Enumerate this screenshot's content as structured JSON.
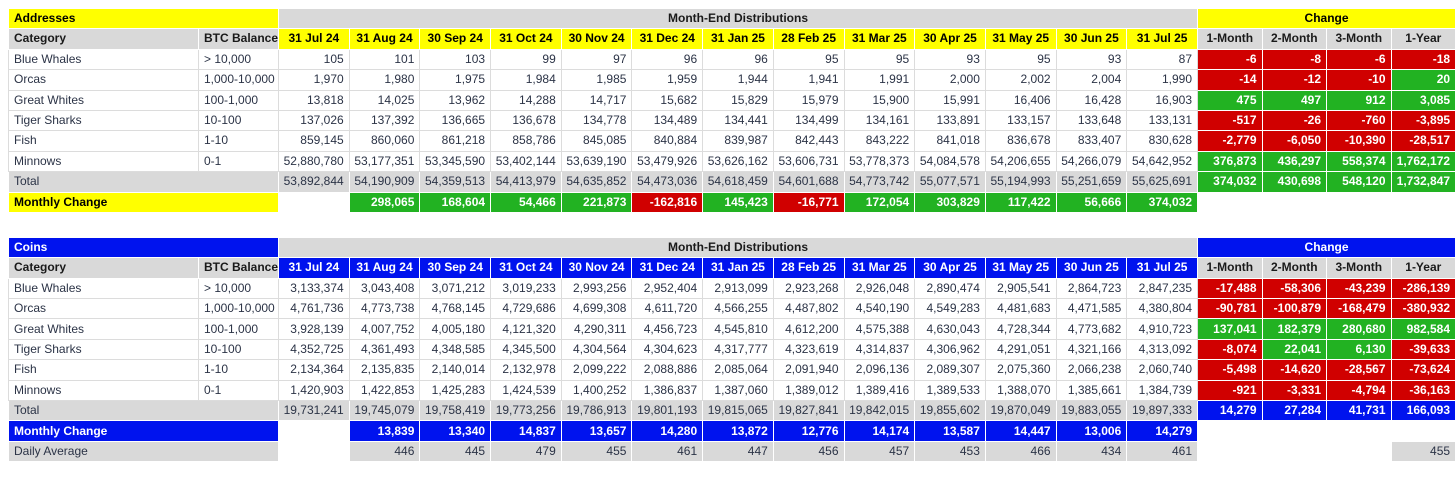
{
  "colors": {
    "yellow": "#FFFF00",
    "blue": "#0013EE",
    "green": "#22B222",
    "red": "#D00000",
    "gray": "#D9D9D9"
  },
  "columns": {
    "category": "Category",
    "balance": "BTC Balance",
    "months": [
      "31 Jul 24",
      "31 Aug 24",
      "30 Sep 24",
      "31 Oct 24",
      "30 Nov 24",
      "31 Dec 24",
      "31 Jan 25",
      "28 Feb 25",
      "31 Mar 25",
      "30 Apr 25",
      "31 May 25",
      "30 Jun 25",
      "31 Jul 25"
    ],
    "changes": [
      "1-Month",
      "2-Month",
      "3-Month",
      "1-Year"
    ]
  },
  "chart_data": [
    {
      "type": "table",
      "id": "addresses",
      "title": "Addresses",
      "banner": "Month-End Distributions",
      "change_header": "Change",
      "theme": "yellow",
      "rows": [
        {
          "category": "Blue Whales",
          "balance": "> 10,000",
          "values": [
            "105",
            "101",
            "103",
            "99",
            "97",
            "96",
            "96",
            "95",
            "95",
            "93",
            "95",
            "93",
            "87"
          ],
          "changes": [
            "-6",
            "-8",
            "-6",
            "-18"
          ]
        },
        {
          "category": "Orcas",
          "balance": "1,000-10,000",
          "values": [
            "1,970",
            "1,980",
            "1,975",
            "1,984",
            "1,985",
            "1,959",
            "1,944",
            "1,941",
            "1,991",
            "2,000",
            "2,002",
            "2,004",
            "1,990"
          ],
          "changes": [
            "-14",
            "-12",
            "-10",
            "20"
          ]
        },
        {
          "category": "Great Whites",
          "balance": "100-1,000",
          "values": [
            "13,818",
            "14,025",
            "13,962",
            "14,288",
            "14,717",
            "15,682",
            "15,829",
            "15,979",
            "15,900",
            "15,991",
            "16,406",
            "16,428",
            "16,903"
          ],
          "changes": [
            "475",
            "497",
            "912",
            "3,085"
          ]
        },
        {
          "category": "Tiger Sharks",
          "balance": "10-100",
          "values": [
            "137,026",
            "137,392",
            "136,665",
            "136,678",
            "134,778",
            "134,489",
            "134,441",
            "134,499",
            "134,161",
            "133,891",
            "133,157",
            "133,648",
            "133,131"
          ],
          "changes": [
            "-517",
            "-26",
            "-760",
            "-3,895"
          ]
        },
        {
          "category": "Fish",
          "balance": "1-10",
          "values": [
            "859,145",
            "860,060",
            "861,218",
            "858,786",
            "845,085",
            "840,884",
            "839,987",
            "842,443",
            "843,222",
            "841,018",
            "836,678",
            "833,407",
            "830,628"
          ],
          "changes": [
            "-2,779",
            "-6,050",
            "-10,390",
            "-28,517"
          ]
        },
        {
          "category": "Minnows",
          "balance": "0-1",
          "values": [
            "52,880,780",
            "53,177,351",
            "53,345,590",
            "53,402,144",
            "53,639,190",
            "53,479,926",
            "53,626,162",
            "53,606,731",
            "53,778,373",
            "54,084,578",
            "54,206,655",
            "54,266,079",
            "54,642,952"
          ],
          "changes": [
            "376,873",
            "436,297",
            "558,374",
            "1,762,172"
          ]
        }
      ],
      "total": {
        "label": "Total",
        "changes_style": "sign",
        "values": [
          "53,892,844",
          "54,190,909",
          "54,359,513",
          "54,413,979",
          "54,635,852",
          "54,473,036",
          "54,618,459",
          "54,601,688",
          "54,773,742",
          "55,077,571",
          "55,194,993",
          "55,251,659",
          "55,625,691"
        ],
        "changes": [
          "374,032",
          "430,698",
          "548,120",
          "1,732,847"
        ]
      },
      "monthly_change": {
        "label": "Monthly Change",
        "style": "sign",
        "values": [
          "298,065",
          "168,604",
          "54,466",
          "221,873",
          "-162,816",
          "145,423",
          "-16,771",
          "172,054",
          "303,829",
          "117,422",
          "56,666",
          "374,032"
        ]
      }
    },
    {
      "type": "table",
      "id": "coins",
      "title": "Coins",
      "banner": "Month-End Distributions",
      "change_header": "Change",
      "theme": "blue",
      "rows": [
        {
          "category": "Blue Whales",
          "balance": "> 10,000",
          "values": [
            "3,133,374",
            "3,043,408",
            "3,071,212",
            "3,019,233",
            "2,993,256",
            "2,952,404",
            "2,913,099",
            "2,923,268",
            "2,926,048",
            "2,890,474",
            "2,905,541",
            "2,864,723",
            "2,847,235"
          ],
          "changes": [
            "-17,488",
            "-58,306",
            "-43,239",
            "-286,139"
          ]
        },
        {
          "category": "Orcas",
          "balance": "1,000-10,000",
          "values": [
            "4,761,736",
            "4,773,738",
            "4,768,145",
            "4,729,686",
            "4,699,308",
            "4,611,720",
            "4,566,255",
            "4,487,802",
            "4,540,190",
            "4,549,283",
            "4,481,683",
            "4,471,585",
            "4,380,804"
          ],
          "changes": [
            "-90,781",
            "-100,879",
            "-168,479",
            "-380,932"
          ]
        },
        {
          "category": "Great Whites",
          "balance": "100-1,000",
          "values": [
            "3,928,139",
            "4,007,752",
            "4,005,180",
            "4,121,320",
            "4,290,311",
            "4,456,723",
            "4,545,810",
            "4,612,200",
            "4,575,388",
            "4,630,043",
            "4,728,344",
            "4,773,682",
            "4,910,723"
          ],
          "changes": [
            "137,041",
            "182,379",
            "280,680",
            "982,584"
          ]
        },
        {
          "category": "Tiger Sharks",
          "balance": "10-100",
          "values": [
            "4,352,725",
            "4,361,493",
            "4,348,585",
            "4,345,500",
            "4,304,564",
            "4,304,623",
            "4,317,777",
            "4,323,619",
            "4,314,837",
            "4,306,962",
            "4,291,051",
            "4,321,166",
            "4,313,092"
          ],
          "changes": [
            "-8,074",
            "22,041",
            "6,130",
            "-39,633"
          ]
        },
        {
          "category": "Fish",
          "balance": "1-10",
          "values": [
            "2,134,364",
            "2,135,835",
            "2,140,014",
            "2,132,978",
            "2,099,222",
            "2,088,886",
            "2,085,064",
            "2,091,940",
            "2,096,136",
            "2,089,307",
            "2,075,360",
            "2,066,238",
            "2,060,740"
          ],
          "changes": [
            "-5,498",
            "-14,620",
            "-28,567",
            "-73,624"
          ]
        },
        {
          "category": "Minnows",
          "balance": "0-1",
          "values": [
            "1,420,903",
            "1,422,853",
            "1,425,283",
            "1,424,539",
            "1,400,252",
            "1,386,837",
            "1,387,060",
            "1,389,012",
            "1,389,416",
            "1,389,533",
            "1,388,070",
            "1,385,661",
            "1,384,739"
          ],
          "changes": [
            "-921",
            "-3,331",
            "-4,794",
            "-36,163"
          ]
        }
      ],
      "total": {
        "label": "Total",
        "changes_style": "blue",
        "values": [
          "19,731,241",
          "19,745,079",
          "19,758,419",
          "19,773,256",
          "19,786,913",
          "19,801,193",
          "19,815,065",
          "19,827,841",
          "19,842,015",
          "19,855,602",
          "19,870,049",
          "19,883,055",
          "19,897,333"
        ],
        "changes": [
          "14,279",
          "27,284",
          "41,731",
          "166,093"
        ]
      },
      "monthly_change": {
        "label": "Monthly Change",
        "style": "blue",
        "values": [
          "13,839",
          "13,340",
          "14,837",
          "13,657",
          "14,280",
          "13,872",
          "12,776",
          "14,174",
          "13,587",
          "14,447",
          "13,006",
          "14,279"
        ]
      },
      "daily_average": {
        "label": "Daily Average",
        "values": [
          "446",
          "445",
          "479",
          "455",
          "461",
          "447",
          "456",
          "457",
          "453",
          "466",
          "434",
          "461"
        ],
        "year_value": "455"
      }
    }
  ]
}
